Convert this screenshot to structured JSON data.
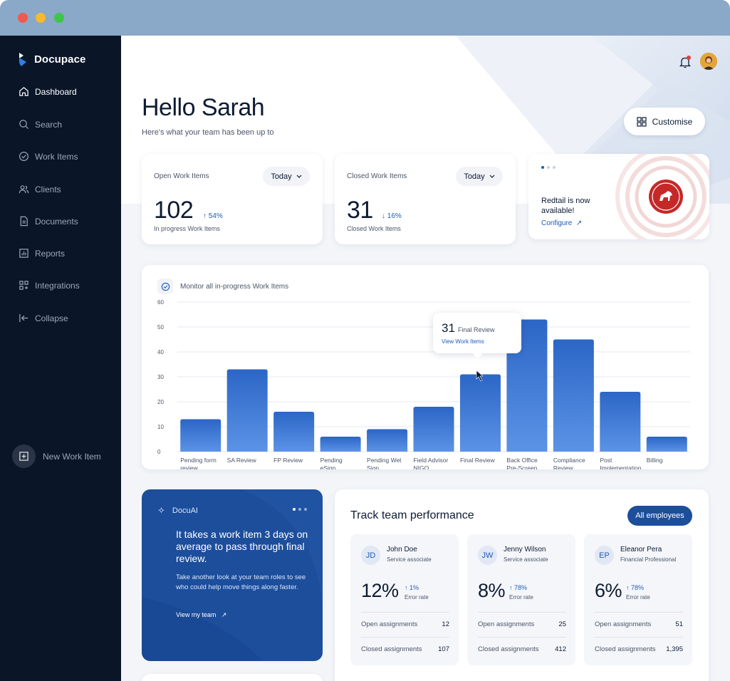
{
  "app": {
    "name": "Docupace"
  },
  "sidebar": {
    "items": [
      {
        "label": "Dashboard",
        "icon": "home-icon"
      },
      {
        "label": "Search",
        "icon": "search-icon"
      },
      {
        "label": "Work Items",
        "icon": "check-circle-icon"
      },
      {
        "label": "Clients",
        "icon": "users-icon"
      },
      {
        "label": "Documents",
        "icon": "document-icon"
      },
      {
        "label": "Reports",
        "icon": "bar-chart-icon"
      },
      {
        "label": "Integrations",
        "icon": "grid-plus-icon"
      },
      {
        "label": "Collapse",
        "icon": "collapse-icon"
      }
    ],
    "new_item_label": "New Work Item"
  },
  "header": {
    "greeting": "Hello Sarah",
    "subtitle": "Here's what your team has been up to",
    "customise_label": "Customise"
  },
  "stats": {
    "open": {
      "title": "Open Work Items",
      "period": "Today",
      "value": "102",
      "change": "54%",
      "label": "In progress Work Items"
    },
    "closed": {
      "title": "Closed Work Items",
      "period": "Today",
      "value": "31",
      "change": "16%",
      "label": "Closed Work Items"
    }
  },
  "promo": {
    "text": "Redtail is now available!",
    "link": "Configure"
  },
  "chart_card": {
    "title": "Monitor all in-progress Work Items",
    "tooltip": {
      "value": "31",
      "label": "Final Review",
      "link": "View Work Items"
    }
  },
  "chart_data": {
    "type": "bar",
    "categories": [
      "Pending form review",
      "SA Review",
      "FP Review",
      "Pending eSign",
      "Pending Wet Sign",
      "Field Advisor NIGO",
      "Final Review",
      "Back Office Pre-Screen",
      "Compliance Review",
      "Post Implementation",
      "Billing"
    ],
    "values": [
      13,
      33,
      16,
      6,
      9,
      18,
      31,
      53,
      45,
      24,
      6
    ],
    "yticks": [
      "0",
      "10",
      "20",
      "30",
      "40",
      "50",
      "60"
    ],
    "ylim": [
      0,
      60
    ],
    "grid": true,
    "color": "#2f6fd0"
  },
  "docuai": {
    "title": "DocuAI",
    "headline": "It takes a work item 3 days on average to pass through final review.",
    "body": "Take another look at your team roles to see who could help move things along faster.",
    "link": "View my team"
  },
  "performance": {
    "title": "Track team performance",
    "filter_label": "All employees",
    "employees": [
      {
        "initials": "JD",
        "name": "John Doe",
        "role": "Service associate",
        "rate": "12%",
        "change": "1%",
        "change_label": "Error rate",
        "open_label": "Open assignments",
        "open": "12",
        "closed_label": "Closed assignments",
        "closed": "107"
      },
      {
        "initials": "JW",
        "name": "Jenny Wilson",
        "role": "Service associate",
        "rate": "8%",
        "change": "78%",
        "change_label": "Error rate",
        "open_label": "Open assignments",
        "open": "25",
        "closed_label": "Closed assignments",
        "closed": "412"
      },
      {
        "initials": "EP",
        "name": "Eleanor Pera",
        "role": "Financial Professional",
        "rate": "6%",
        "change": "78%",
        "change_label": "Error rate",
        "open_label": "Open assignments",
        "open": "51",
        "closed_label": "Closed assignments",
        "closed": "1,395"
      }
    ]
  }
}
